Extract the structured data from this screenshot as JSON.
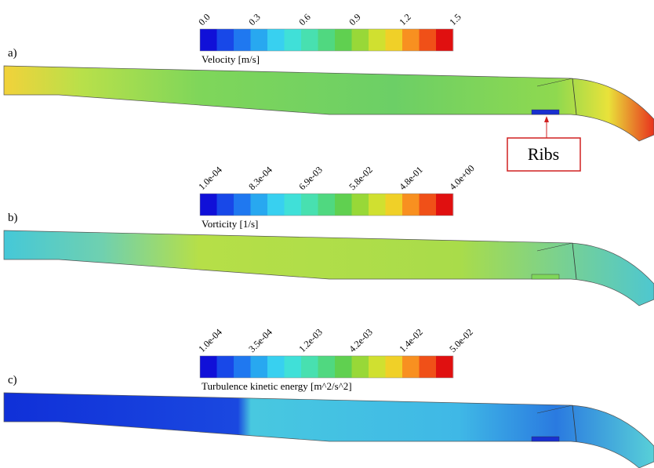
{
  "panels": [
    {
      "label": "a)",
      "legend": {
        "title": "Velocity [m/s]",
        "ticks": [
          "0.0",
          "0.3",
          "0.6",
          "0.9",
          "1.2",
          "1.5"
        ]
      }
    },
    {
      "label": "b)",
      "legend": {
        "title": "Vorticity [1/s]",
        "ticks": [
          "1.0e-04",
          "8.3e-04",
          "6.9e-03",
          "5.8e-02",
          "4.8e-01",
          "4.0e+00"
        ]
      }
    },
    {
      "label": "c)",
      "legend": {
        "title": "Turbulence kinetic energy [m^2/s^2]",
        "ticks": [
          "1.0e-04",
          "3.5e-04",
          "1.2e-03",
          "4.2e-03",
          "1.4e-02",
          "5.0e-02"
        ]
      }
    }
  ],
  "annotation": {
    "text": "Ribs"
  }
}
